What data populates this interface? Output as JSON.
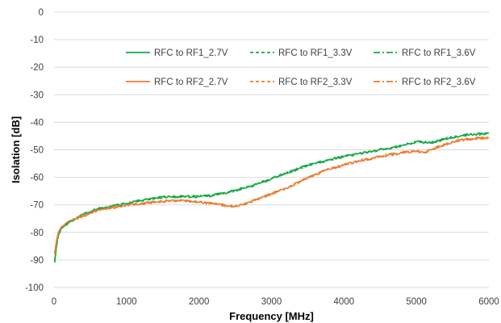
{
  "chart_data": {
    "type": "line",
    "title": "",
    "xlabel": "Frequency [MHz]",
    "ylabel": "Isolation [dB]",
    "xlim": [
      0,
      6000
    ],
    "ylim": [
      -100,
      0
    ],
    "xticks": [
      0,
      1000,
      2000,
      3000,
      4000,
      5000,
      6000
    ],
    "yticks": [
      0,
      -10,
      -20,
      -30,
      -40,
      -50,
      -60,
      -70,
      -80,
      -90,
      -100
    ],
    "grid": "horizontal",
    "legend_position": "top-right, inside plot",
    "colors": {
      "rf1": "#1aa84b",
      "rf2": "#ed7d31"
    },
    "series": [
      {
        "name": "RFC to RF1_2.7V",
        "color": "#1aa84b",
        "dash": "solid",
        "x": [
          10,
          30,
          60,
          100,
          150,
          200,
          300,
          400,
          500,
          600,
          700,
          800,
          900,
          1000,
          1200,
          1400,
          1600,
          1800,
          2000,
          2200,
          2400,
          2600,
          2800,
          3000,
          3200,
          3400,
          3600,
          3800,
          4000,
          4200,
          4400,
          4600,
          4800,
          4900,
          5000,
          5200,
          5400,
          5600,
          5800,
          6000
        ],
        "values": [
          -91,
          -86,
          -81,
          -78.5,
          -77.5,
          -76.5,
          -75,
          -73.5,
          -72.5,
          -71.5,
          -71,
          -70.5,
          -70,
          -69.5,
          -68.5,
          -67.5,
          -67,
          -67,
          -67,
          -66.5,
          -65.5,
          -64,
          -62.5,
          -60.5,
          -58.5,
          -56.5,
          -55,
          -53.5,
          -52.5,
          -51.5,
          -50.5,
          -49.5,
          -48.5,
          -47.8,
          -47,
          -47.5,
          -46,
          -45,
          -44.3,
          -44
        ]
      },
      {
        "name": "RFC to RF1_3.3V",
        "color": "#1aa84b",
        "dash": "dashed",
        "x": [
          10,
          30,
          60,
          100,
          150,
          200,
          300,
          400,
          500,
          600,
          700,
          800,
          900,
          1000,
          1200,
          1400,
          1600,
          1800,
          2000,
          2200,
          2400,
          2600,
          2800,
          3000,
          3200,
          3400,
          3600,
          3800,
          4000,
          4200,
          4400,
          4600,
          4800,
          4900,
          5000,
          5200,
          5400,
          5600,
          5800,
          6000
        ],
        "values": [
          -90.5,
          -85.5,
          -81,
          -78.5,
          -77.5,
          -76.5,
          -75,
          -73.5,
          -72.5,
          -71.5,
          -71,
          -70.5,
          -70,
          -69.5,
          -68.5,
          -67.5,
          -67,
          -67,
          -67,
          -66.5,
          -65.5,
          -64,
          -62.5,
          -60.5,
          -58.5,
          -56.5,
          -55,
          -53.5,
          -52.5,
          -51.5,
          -50.5,
          -49.5,
          -48.5,
          -47.8,
          -47,
          -47.5,
          -46,
          -45,
          -44.3,
          -44
        ]
      },
      {
        "name": "RFC to RF1_3.6V",
        "color": "#1aa84b",
        "dash": "dash-dot",
        "x": [
          10,
          30,
          60,
          100,
          150,
          200,
          300,
          400,
          500,
          600,
          700,
          800,
          900,
          1000,
          1200,
          1400,
          1600,
          1800,
          2000,
          2200,
          2400,
          2600,
          2800,
          3000,
          3200,
          3400,
          3600,
          3800,
          4000,
          4200,
          4400,
          4600,
          4800,
          4900,
          5000,
          5200,
          5400,
          5600,
          5800,
          6000
        ],
        "values": [
          -90,
          -85.5,
          -81,
          -78.5,
          -77.5,
          -76.5,
          -75,
          -73.5,
          -72.5,
          -71.5,
          -71,
          -70.5,
          -70,
          -69.5,
          -68.5,
          -67.5,
          -67,
          -67,
          -67,
          -66.5,
          -65.5,
          -64,
          -62.5,
          -60.5,
          -58.5,
          -56.5,
          -55,
          -53.5,
          -52.5,
          -51.5,
          -50.5,
          -49.5,
          -48.5,
          -47.8,
          -47,
          -47.5,
          -46,
          -45,
          -44.3,
          -44
        ]
      },
      {
        "name": "RFC to RF2_2.7V",
        "color": "#ed7d31",
        "dash": "solid",
        "x": [
          10,
          30,
          60,
          100,
          150,
          200,
          300,
          400,
          500,
          600,
          700,
          800,
          900,
          1000,
          1200,
          1400,
          1600,
          1800,
          2000,
          2200,
          2400,
          2500,
          2600,
          2700,
          2800,
          3000,
          3200,
          3400,
          3600,
          3800,
          4000,
          4200,
          4400,
          4600,
          4800,
          5000,
          5100,
          5200,
          5400,
          5600,
          5800,
          6000
        ],
        "values": [
          -88,
          -84,
          -80,
          -78,
          -77,
          -76,
          -75,
          -74,
          -73,
          -72,
          -71.5,
          -71,
          -70.5,
          -70,
          -69.5,
          -69,
          -68.5,
          -68.5,
          -69,
          -69.5,
          -70.5,
          -70.5,
          -70,
          -69,
          -68,
          -66,
          -64,
          -61.5,
          -59,
          -57,
          -55.5,
          -54,
          -53,
          -52,
          -51,
          -50.5,
          -51,
          -50,
          -48,
          -46.5,
          -46,
          -45.5
        ]
      },
      {
        "name": "RFC to RF2_3.3V",
        "color": "#ed7d31",
        "dash": "dashed",
        "x": [
          10,
          30,
          60,
          100,
          150,
          200,
          300,
          400,
          500,
          600,
          700,
          800,
          900,
          1000,
          1200,
          1400,
          1600,
          1800,
          2000,
          2200,
          2400,
          2500,
          2600,
          2700,
          2800,
          3000,
          3200,
          3400,
          3600,
          3800,
          4000,
          4200,
          4400,
          4600,
          4800,
          5000,
          5100,
          5200,
          5400,
          5600,
          5800,
          6000
        ],
        "values": [
          -87.5,
          -83.5,
          -80,
          -78,
          -77,
          -76,
          -75,
          -74,
          -73,
          -72,
          -71.5,
          -71,
          -70.5,
          -70,
          -69.5,
          -69,
          -68.5,
          -68.5,
          -69,
          -69.5,
          -70.5,
          -70.5,
          -70,
          -69,
          -68,
          -66,
          -64,
          -61.5,
          -59,
          -57,
          -55.5,
          -54,
          -53,
          -52,
          -51,
          -50.5,
          -51,
          -50,
          -48,
          -46.5,
          -46,
          -45.5
        ]
      },
      {
        "name": "RFC to RF2_3.6V",
        "color": "#ed7d31",
        "dash": "dash-dot",
        "x": [
          10,
          30,
          60,
          100,
          150,
          200,
          300,
          400,
          500,
          600,
          700,
          800,
          900,
          1000,
          1200,
          1400,
          1600,
          1800,
          2000,
          2200,
          2400,
          2500,
          2600,
          2700,
          2800,
          3000,
          3200,
          3400,
          3600,
          3800,
          4000,
          4200,
          4400,
          4600,
          4800,
          5000,
          5100,
          5200,
          5400,
          5600,
          5800,
          6000
        ],
        "values": [
          -87,
          -83.5,
          -80,
          -78,
          -77,
          -76,
          -75,
          -74,
          -73,
          -72,
          -71.5,
          -71,
          -70.5,
          -70,
          -69.5,
          -69,
          -68.5,
          -68.5,
          -69,
          -69.5,
          -70.5,
          -70.5,
          -70,
          -69,
          -68,
          -66,
          -64,
          -61.5,
          -59,
          -57,
          -55.5,
          -54,
          -53,
          -52,
          -51,
          -50.5,
          -51,
          -50,
          -48,
          -46.5,
          -46,
          -45.5
        ]
      }
    ]
  }
}
